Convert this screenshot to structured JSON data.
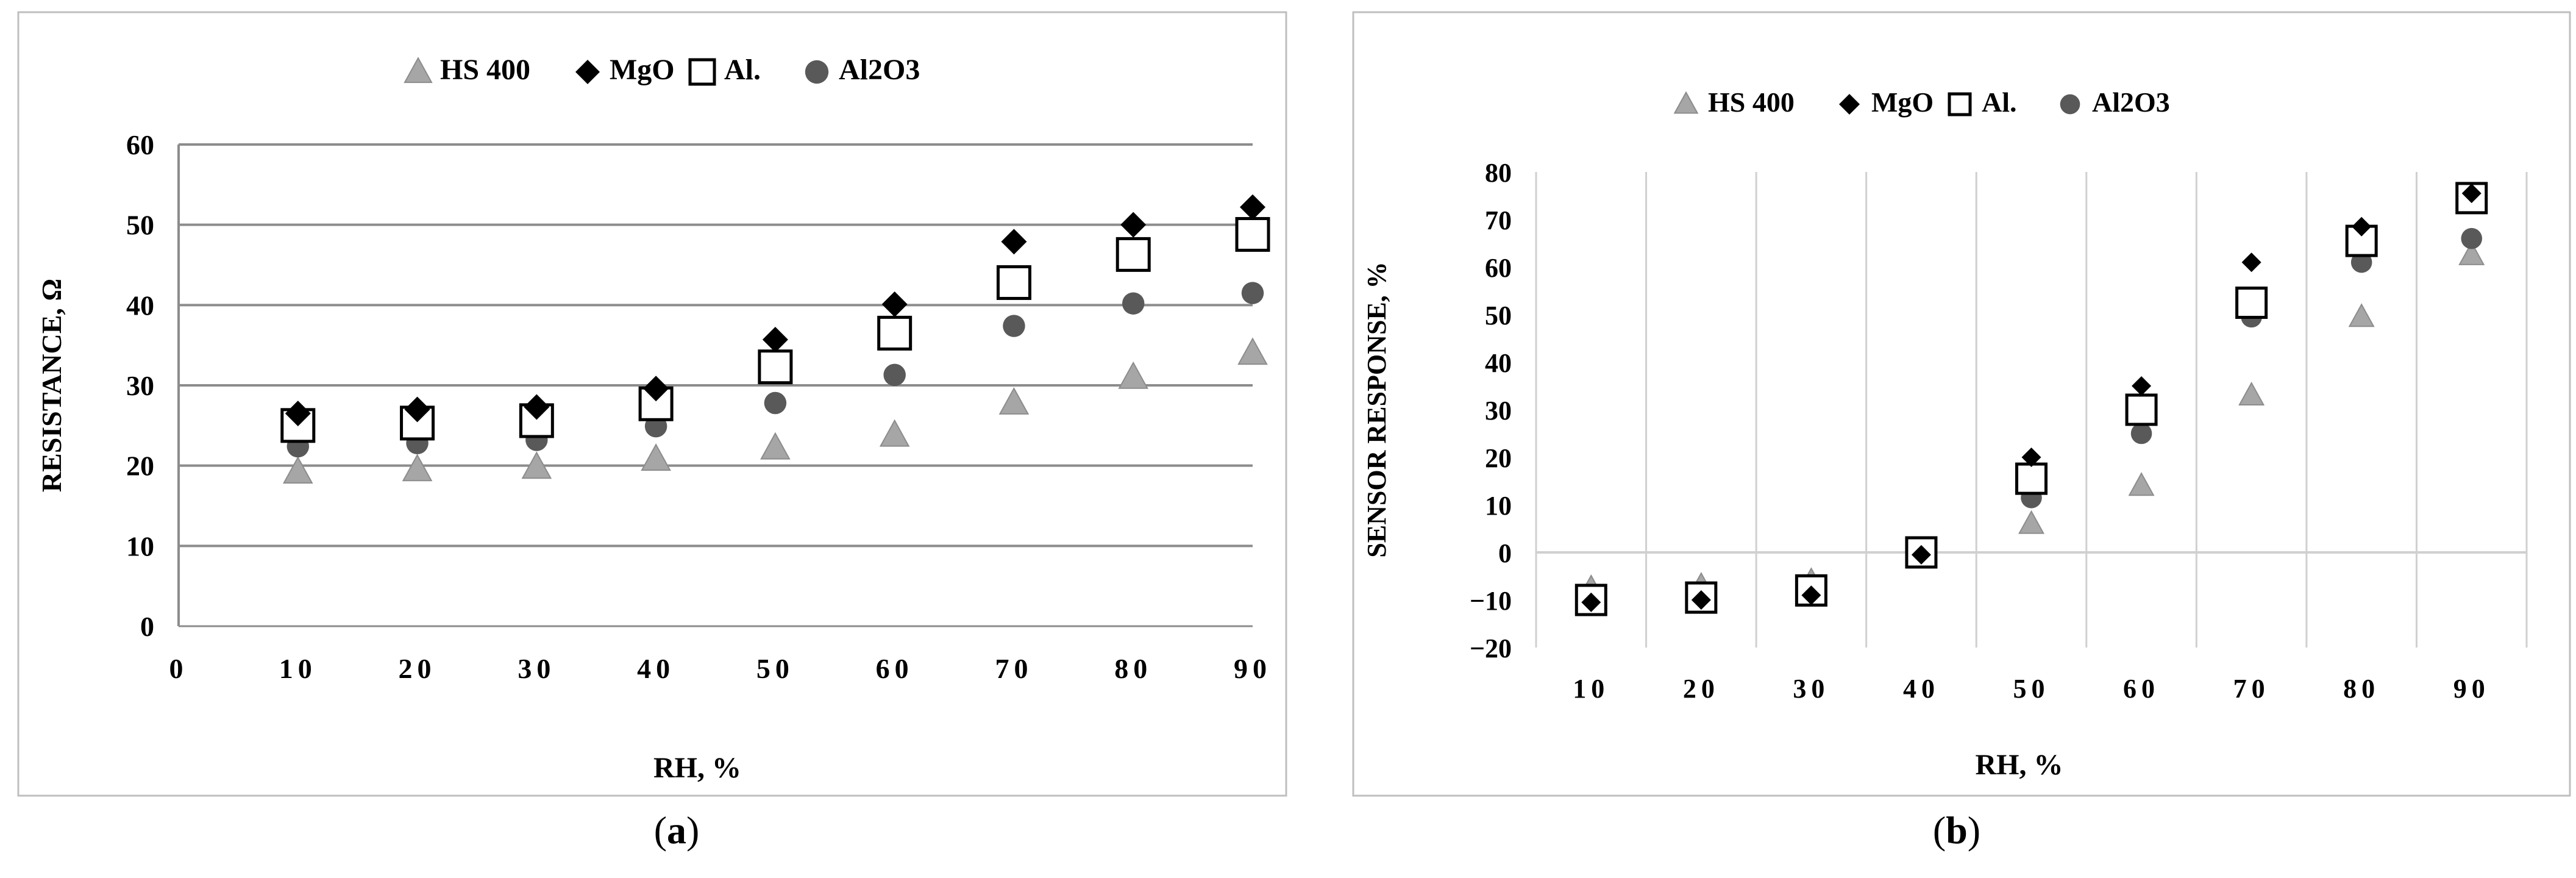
{
  "captions": {
    "a": {
      "open": "(",
      "letter": "a",
      "close": ")"
    },
    "b": {
      "open": "(",
      "letter": "b",
      "close": ")"
    }
  },
  "colors": {
    "HS 400": "#a6a6a6",
    "MgO": "#000000",
    "Al.": "#000000",
    "Al2O3": "#595959"
  },
  "chart_data": [
    {
      "type": "scatter",
      "panel": "a",
      "title": "",
      "xlabel": "RH, %",
      "ylabel": "RESISTANCE, Ω",
      "xlim": [
        0,
        90
      ],
      "ylim": [
        0,
        60
      ],
      "x_ticks": [
        "0",
        "10",
        "20",
        "30",
        "40",
        "50",
        "60",
        "70",
        "80",
        "90"
      ],
      "y_ticks": [
        "0",
        "10",
        "20",
        "30",
        "40",
        "50",
        "60"
      ],
      "grid": "horizontal",
      "legend_position": "top",
      "x": [
        10,
        20,
        30,
        40,
        50,
        60,
        70,
        80,
        90
      ],
      "series": [
        {
          "name": "HS 400",
          "marker": "triangle",
          "values": [
            19.2,
            19.5,
            19.8,
            20.8,
            22.2,
            23.8,
            27.8,
            31.0,
            34.0
          ]
        },
        {
          "name": "MgO",
          "marker": "diamond",
          "values": [
            26.5,
            27.0,
            27.3,
            29.6,
            35.7,
            40.1,
            47.9,
            50.0,
            52.2
          ]
        },
        {
          "name": "Al.",
          "marker": "square",
          "values": [
            25.0,
            25.3,
            25.6,
            27.7,
            32.3,
            36.5,
            42.8,
            46.3,
            48.8
          ]
        },
        {
          "name": "Al2O3",
          "marker": "circle",
          "values": [
            22.4,
            22.8,
            23.2,
            24.9,
            27.8,
            31.3,
            37.4,
            40.2,
            41.5
          ]
        }
      ]
    },
    {
      "type": "scatter",
      "panel": "b",
      "title": "",
      "xlabel": "RH, %",
      "ylabel": "SENSOR RESPONSE, %",
      "categories": [
        "10",
        "20",
        "30",
        "40",
        "50",
        "60",
        "70",
        "80",
        "90"
      ],
      "ylim": [
        -20,
        80
      ],
      "y_ticks": [
        "−20",
        "−10",
        "0",
        "10",
        "20",
        "30",
        "40",
        "50",
        "60",
        "70",
        "80"
      ],
      "grid": "vertical",
      "legend_position": "top",
      "series": [
        {
          "name": "HS 400",
          "marker": "triangle",
          "values": [
            -7.5,
            -7.0,
            -6.0,
            0.0,
            6.0,
            14.0,
            33.0,
            49.5,
            62.5
          ]
        },
        {
          "name": "MgO",
          "marker": "diamond",
          "values": [
            -10.5,
            -10.0,
            -9.0,
            -0.5,
            20.0,
            35.0,
            61.0,
            68.5,
            75.5
          ]
        },
        {
          "name": "Al.",
          "marker": "square",
          "values": [
            -10.0,
            -9.5,
            -8.0,
            0.0,
            15.5,
            30.0,
            52.5,
            65.5,
            74.5
          ]
        },
        {
          "name": "Al2O3",
          "marker": "circle",
          "values": [
            -9.0,
            -8.5,
            -7.0,
            -0.5,
            11.5,
            25.0,
            49.5,
            61.0,
            66.0
          ]
        }
      ]
    }
  ]
}
